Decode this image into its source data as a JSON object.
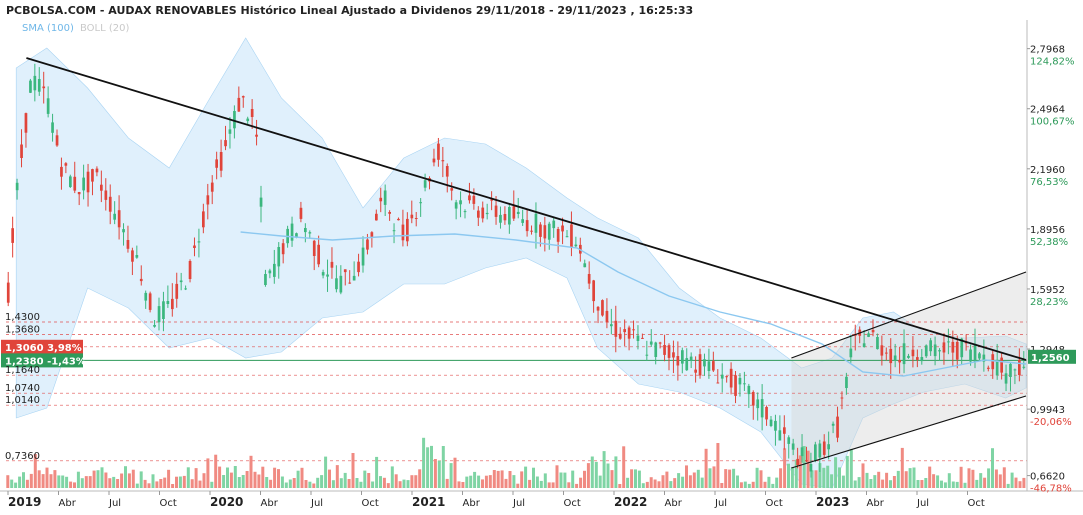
{
  "header": {
    "title": "PCBOLSA.COM - AUDAX RENOVABLES Histórico Lineal Ajustado a Dividenos 29/11/2018 - 29/11/2023 , 16:25:33",
    "legend_sma": "SMA (100)",
    "legend_boll": "BOLL (20)"
  },
  "colors": {
    "up": "#3bb77e",
    "down": "#e0443a",
    "sma": "#8cc8f0",
    "band": "#cfe8fb",
    "trend": "#111111",
    "ref": "#e05050",
    "price_line": "#2e9a5a"
  },
  "chart_data": {
    "type": "candlestick",
    "ylim": [
      0.6,
      2.86
    ],
    "x_ticks": [
      "2019",
      "Abr",
      "Jul",
      "Oct",
      "2020",
      "Abr",
      "Jul",
      "Oct",
      "2021",
      "Abr",
      "Jul",
      "Oct",
      "2022",
      "Abr",
      "Jul",
      "Oct",
      "2023",
      "Abr",
      "Jul",
      "Oct"
    ],
    "x_ticks_bold": [
      "2019",
      "2020",
      "2021",
      "2022",
      "2023"
    ],
    "right_axis": [
      {
        "price": "2,7968",
        "pct": "124,82%",
        "sign": "pos"
      },
      {
        "price": "2,4964",
        "pct": "100,67%",
        "sign": "pos"
      },
      {
        "price": "2,1960",
        "pct": "76,53%",
        "sign": "pos"
      },
      {
        "price": "1,8956",
        "pct": "52,38%",
        "sign": "pos"
      },
      {
        "price": "1,5952",
        "pct": "28,23%",
        "sign": "pos"
      },
      {
        "price": "1,2948",
        "pct": "",
        "sign": "pos"
      },
      {
        "price": "0,9943",
        "pct": "-20,06%",
        "sign": "neg"
      },
      {
        "price": "0,6620",
        "pct": "-46,78%",
        "sign": "neg"
      }
    ],
    "current_price": "1,2560",
    "left_labels": [
      {
        "text": "1,4300",
        "style": "plain"
      },
      {
        "text": "1,3680",
        "style": "plain"
      },
      {
        "text": "1,3060 3,98%",
        "style": "red"
      },
      {
        "text": "1,2380 -1,43%",
        "style": "green"
      },
      {
        "text": "1,1640",
        "style": "plain"
      },
      {
        "text": "1,0740",
        "style": "plain"
      },
      {
        "text": "1,0140",
        "style": "plain"
      },
      {
        "text": "0,7360",
        "style": "plain"
      }
    ],
    "ref_levels": [
      1.43,
      1.368,
      1.306,
      1.238,
      1.164,
      1.074,
      1.014,
      0.736
    ],
    "price_path": [
      [
        0,
        1.45
      ],
      [
        0.01,
        2.05
      ],
      [
        0.025,
        2.65
      ],
      [
        0.04,
        2.55
      ],
      [
        0.055,
        2.2
      ],
      [
        0.07,
        2.1
      ],
      [
        0.09,
        2.15
      ],
      [
        0.11,
        1.95
      ],
      [
        0.13,
        1.72
      ],
      [
        0.145,
        1.45
      ],
      [
        0.16,
        1.5
      ],
      [
        0.18,
        1.68
      ],
      [
        0.2,
        2.1
      ],
      [
        0.215,
        2.3
      ],
      [
        0.23,
        2.55
      ],
      [
        0.245,
        2.4
      ],
      [
        0.255,
        1.6
      ],
      [
        0.27,
        1.8
      ],
      [
        0.29,
        1.95
      ],
      [
        0.31,
        1.72
      ],
      [
        0.33,
        1.62
      ],
      [
        0.35,
        1.75
      ],
      [
        0.37,
        2.05
      ],
      [
        0.39,
        1.85
      ],
      [
        0.41,
        2.1
      ],
      [
        0.425,
        2.3
      ],
      [
        0.44,
        2.05
      ],
      [
        0.46,
        2.0
      ],
      [
        0.48,
        1.98
      ],
      [
        0.5,
        1.95
      ],
      [
        0.52,
        1.92
      ],
      [
        0.54,
        1.88
      ],
      [
        0.56,
        1.85
      ],
      [
        0.575,
        1.6
      ],
      [
        0.59,
        1.42
      ],
      [
        0.61,
        1.36
      ],
      [
        0.63,
        1.3
      ],
      [
        0.65,
        1.28
      ],
      [
        0.67,
        1.24
      ],
      [
        0.69,
        1.2
      ],
      [
        0.71,
        1.14
      ],
      [
        0.73,
        1.05
      ],
      [
        0.75,
        0.95
      ],
      [
        0.77,
        0.8
      ],
      [
        0.785,
        0.72
      ],
      [
        0.8,
        0.8
      ],
      [
        0.815,
        0.9
      ],
      [
        0.83,
        1.3
      ],
      [
        0.845,
        1.38
      ],
      [
        0.86,
        1.3
      ],
      [
        0.875,
        1.25
      ],
      [
        0.89,
        1.3
      ],
      [
        0.91,
        1.28
      ],
      [
        0.93,
        1.3
      ],
      [
        0.95,
        1.29
      ],
      [
        0.965,
        1.25
      ],
      [
        0.98,
        1.18
      ],
      [
        1.0,
        1.24
      ]
    ],
    "sma_path": [
      [
        0.23,
        1.88
      ],
      [
        0.27,
        1.86
      ],
      [
        0.32,
        1.84
      ],
      [
        0.38,
        1.86
      ],
      [
        0.44,
        1.87
      ],
      [
        0.5,
        1.84
      ],
      [
        0.56,
        1.8
      ],
      [
        0.6,
        1.68
      ],
      [
        0.65,
        1.56
      ],
      [
        0.7,
        1.48
      ],
      [
        0.75,
        1.42
      ],
      [
        0.8,
        1.32
      ],
      [
        0.84,
        1.18
      ],
      [
        0.88,
        1.16
      ],
      [
        0.92,
        1.2
      ],
      [
        0.96,
        1.24
      ],
      [
        1.0,
        1.22
      ]
    ],
    "band_upper": [
      [
        0.01,
        2.7
      ],
      [
        0.04,
        2.8
      ],
      [
        0.08,
        2.6
      ],
      [
        0.12,
        2.35
      ],
      [
        0.16,
        2.2
      ],
      [
        0.2,
        2.55
      ],
      [
        0.235,
        2.85
      ],
      [
        0.27,
        2.55
      ],
      [
        0.31,
        2.35
      ],
      [
        0.35,
        2.0
      ],
      [
        0.39,
        2.25
      ],
      [
        0.43,
        2.35
      ],
      [
        0.47,
        2.32
      ],
      [
        0.51,
        2.2
      ],
      [
        0.55,
        2.05
      ],
      [
        0.58,
        1.95
      ],
      [
        0.62,
        1.85
      ],
      [
        0.66,
        1.6
      ],
      [
        0.7,
        1.45
      ],
      [
        0.74,
        1.35
      ],
      [
        0.78,
        1.2
      ],
      [
        0.81,
        1.25
      ],
      [
        0.84,
        1.45
      ],
      [
        0.87,
        1.48
      ],
      [
        0.9,
        1.38
      ],
      [
        0.94,
        1.35
      ],
      [
        0.98,
        1.36
      ],
      [
        1.0,
        1.32
      ]
    ],
    "band_lower": [
      [
        0.01,
        0.95
      ],
      [
        0.04,
        1.0
      ],
      [
        0.08,
        1.6
      ],
      [
        0.12,
        1.5
      ],
      [
        0.16,
        1.3
      ],
      [
        0.2,
        1.35
      ],
      [
        0.235,
        1.25
      ],
      [
        0.27,
        1.28
      ],
      [
        0.31,
        1.45
      ],
      [
        0.35,
        1.48
      ],
      [
        0.39,
        1.62
      ],
      [
        0.43,
        1.62
      ],
      [
        0.47,
        1.7
      ],
      [
        0.51,
        1.75
      ],
      [
        0.55,
        1.65
      ],
      [
        0.58,
        1.3
      ],
      [
        0.62,
        1.12
      ],
      [
        0.66,
        1.08
      ],
      [
        0.7,
        1.0
      ],
      [
        0.74,
        0.88
      ],
      [
        0.78,
        0.62
      ],
      [
        0.81,
        0.6
      ],
      [
        0.84,
        0.95
      ],
      [
        0.87,
        1.02
      ],
      [
        0.9,
        1.08
      ],
      [
        0.94,
        1.12
      ],
      [
        0.98,
        1.05
      ],
      [
        1.0,
        1.1
      ]
    ],
    "trend_lines": [
      {
        "from": [
          0.02,
          2.75
        ],
        "to": [
          1.0,
          1.24
        ]
      },
      {
        "from": [
          0.77,
          0.7
        ],
        "to": [
          1.0,
          1.06
        ]
      },
      {
        "from": [
          0.77,
          1.25
        ],
        "to": [
          1.0,
          1.68
        ]
      }
    ],
    "volume_seed": 7
  }
}
